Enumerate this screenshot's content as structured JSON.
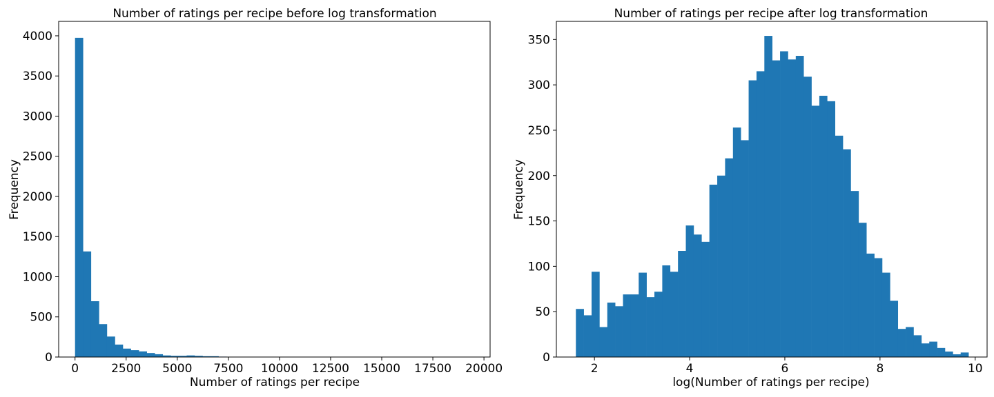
{
  "chart_data": [
    {
      "type": "bar",
      "title": "Number of ratings per recipe before log transformation",
      "xlabel": "Number of ratings per recipe",
      "ylabel": "Frequency",
      "xlim": [
        -800,
        20300
      ],
      "ylim": [
        0,
        4180
      ],
      "xticks": [
        0,
        2500,
        5000,
        7500,
        10000,
        12500,
        15000,
        17500,
        20000
      ],
      "xtick_labels": [
        "0",
        "2500",
        "5000",
        "7500",
        "10000",
        "12500",
        "15000",
        "17500",
        "20000"
      ],
      "yticks": [
        0,
        500,
        1000,
        1500,
        2000,
        2500,
        3000,
        3500,
        4000
      ],
      "ytick_labels": [
        "0",
        "500",
        "1000",
        "1500",
        "2000",
        "2500",
        "3000",
        "3500",
        "4000"
      ],
      "bin_start": 0,
      "bin_width": 390,
      "values": [
        3975,
        1315,
        695,
        410,
        255,
        155,
        105,
        85,
        70,
        50,
        35,
        20,
        15,
        15,
        20,
        15,
        10,
        10,
        5,
        3,
        3,
        3,
        3,
        2,
        2,
        2,
        2,
        2,
        2,
        2,
        2,
        2,
        2,
        2,
        2,
        2,
        2,
        2,
        2,
        2,
        2,
        2,
        2,
        2,
        2,
        2,
        2,
        2,
        2,
        2
      ],
      "color": "#1f77b4",
      "grid": false,
      "legend": "none"
    },
    {
      "type": "bar",
      "title": "Number of ratings per recipe after log transformation",
      "xlabel": "log(Number of ratings per recipe)",
      "ylabel": "Frequency",
      "xlim": [
        1.2,
        10.25
      ],
      "ylim": [
        0,
        370
      ],
      "xticks": [
        2,
        4,
        6,
        8,
        10
      ],
      "xtick_labels": [
        "2",
        "4",
        "6",
        "8",
        "10"
      ],
      "yticks": [
        0,
        50,
        100,
        150,
        200,
        250,
        300,
        350
      ],
      "ytick_labels": [
        "0",
        "50",
        "100",
        "150",
        "200",
        "250",
        "300",
        "350"
      ],
      "bin_start": 1.61,
      "bin_width": 0.165,
      "values": [
        53,
        46,
        94,
        33,
        60,
        56,
        69,
        69,
        93,
        66,
        72,
        101,
        94,
        117,
        145,
        135,
        127,
        190,
        200,
        219,
        253,
        239,
        305,
        315,
        354,
        327,
        337,
        328,
        332,
        309,
        277,
        288,
        282,
        244,
        229,
        183,
        148,
        114,
        109,
        93,
        62,
        31,
        33,
        24,
        15,
        17,
        10,
        6,
        3,
        5
      ],
      "color": "#1f77b4",
      "grid": false,
      "legend": "none"
    }
  ]
}
